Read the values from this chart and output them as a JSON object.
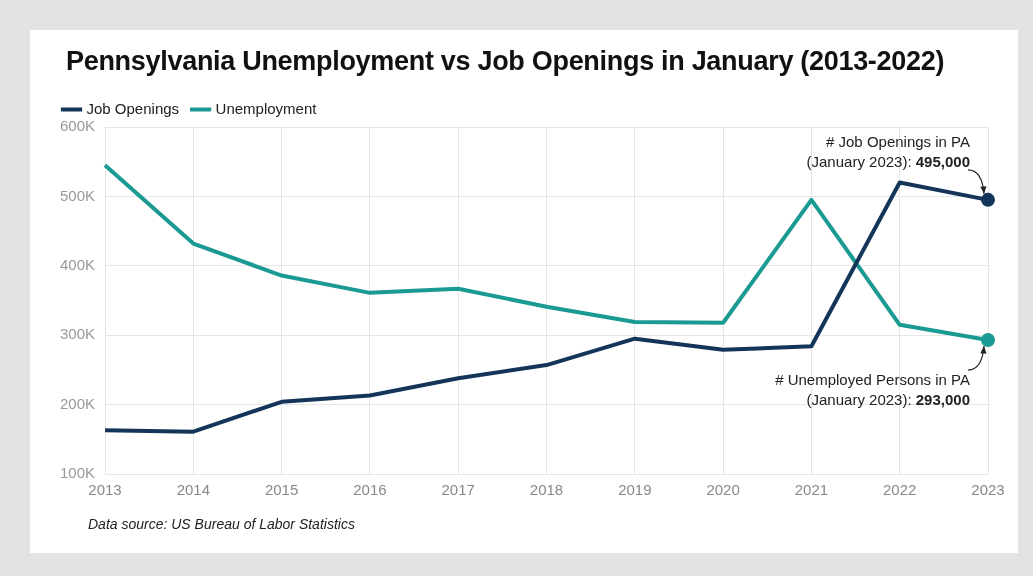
{
  "chart_data": {
    "type": "line",
    "title": "Pennsylvania Unemployment vs Job Openings in January (2013-2022)",
    "categories": [
      "2013",
      "2014",
      "2015",
      "2016",
      "2017",
      "2018",
      "2019",
      "2020",
      "2021",
      "2022",
      "2023"
    ],
    "series": [
      {
        "name": "Job Openings",
        "color": "#14355a",
        "values": [
          163000,
          161000,
          204000,
          213000,
          238000,
          257000,
          295000,
          279000,
          284000,
          520000,
          495000
        ]
      },
      {
        "name": "Unemployment",
        "color": "#1a9a93",
        "values": [
          545000,
          432000,
          386000,
          361000,
          367000,
          341000,
          319000,
          318000,
          495000,
          315000,
          293000
        ]
      }
    ],
    "ylim": [
      100000,
      600000
    ],
    "yticks": [
      {
        "value": 100000,
        "label": "100K"
      },
      {
        "value": 200000,
        "label": "200K"
      },
      {
        "value": 300000,
        "label": "300K"
      },
      {
        "value": 400000,
        "label": "400K"
      },
      {
        "value": 500000,
        "label": "500K"
      },
      {
        "value": 600000,
        "label": "600K"
      }
    ],
    "grid": true,
    "legend": "top left",
    "annotations": [
      {
        "text": "# Job Openings in PA\n(January 2023): 495,000",
        "x": "2023",
        "y": 495000
      },
      {
        "text": "# Unemployed Persons in PA\n(January 2023): 293,000",
        "x": "2023",
        "y": 293000
      },
      "Data source: US Bureau of Labor Statistics"
    ]
  }
}
